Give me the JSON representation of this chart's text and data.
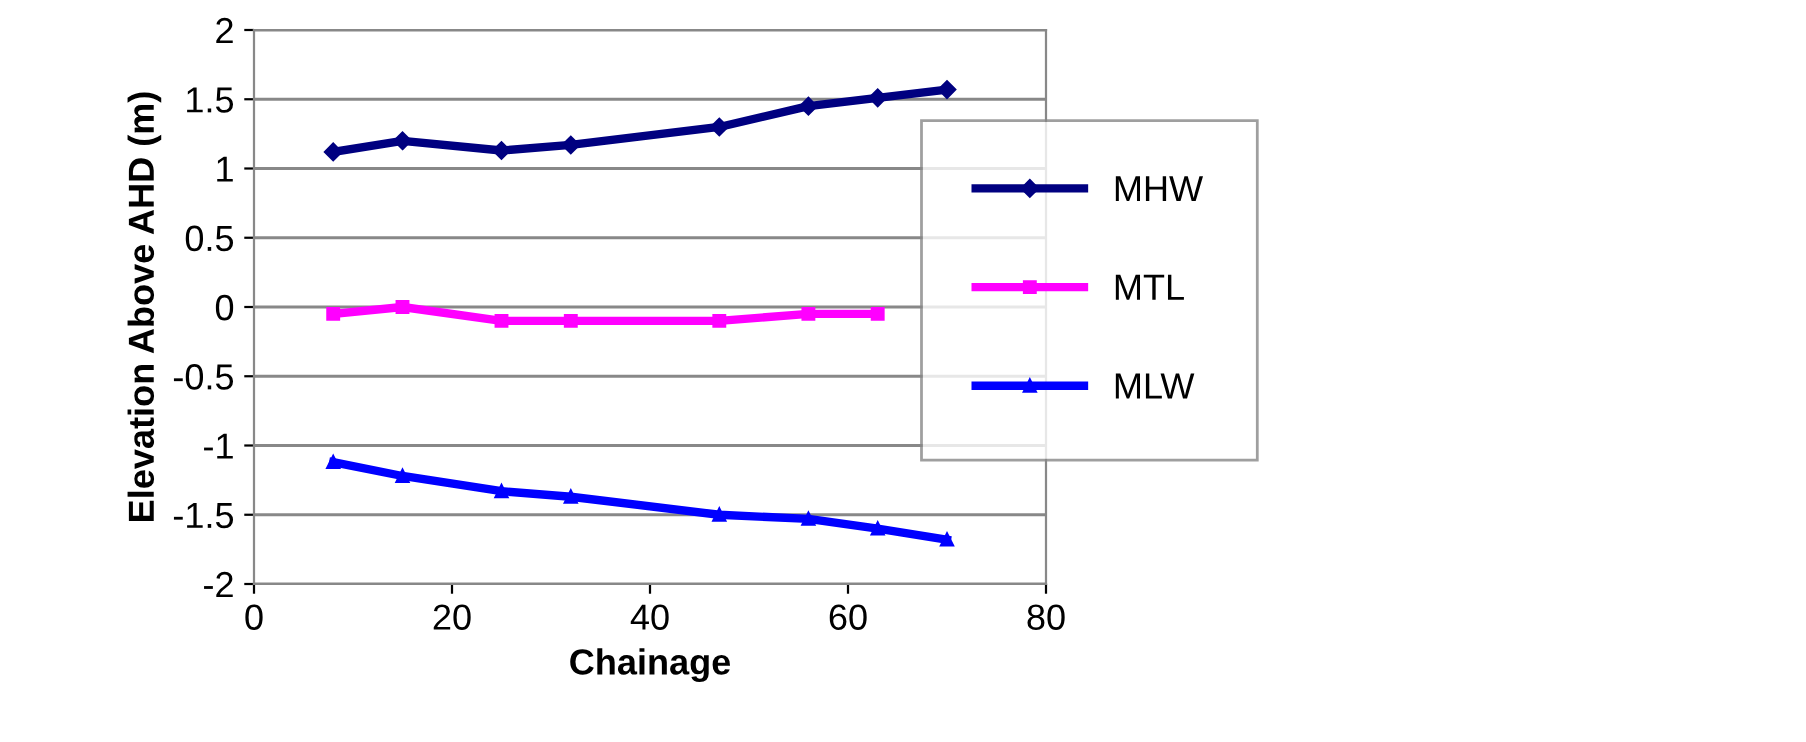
{
  "chart_data": {
    "type": "line",
    "xlabel": "Chainage",
    "ylabel": "Elevation Above AHD (m)",
    "x": [
      8,
      15,
      25,
      32,
      47,
      56,
      63,
      70
    ],
    "series": [
      {
        "name": "MHW",
        "color": "#000080",
        "marker": "diamond",
        "values": [
          1.12,
          1.2,
          1.13,
          1.17,
          1.3,
          1.45,
          1.51,
          1.57
        ]
      },
      {
        "name": "MTL",
        "color": "#ff00ff",
        "marker": "square",
        "values": [
          -0.05,
          0,
          -0.1,
          -0.1,
          -0.1,
          -0.05,
          -0.05,
          null
        ]
      },
      {
        "name": "MLW",
        "color": "#0000ff",
        "marker": "triangle",
        "values": [
          -1.12,
          -1.22,
          -1.33,
          -1.37,
          -1.5,
          -1.53,
          -1.6,
          -1.68
        ]
      }
    ],
    "xlim": [
      0,
      80
    ],
    "xticks": [
      0,
      20,
      40,
      60,
      80
    ],
    "ylim": [
      -2,
      2
    ],
    "yticks": [
      -2,
      -1.5,
      -1,
      -0.5,
      0,
      0.5,
      1,
      1.5,
      2
    ],
    "grid": "y",
    "legend": "right",
    "line_style": "solid"
  }
}
